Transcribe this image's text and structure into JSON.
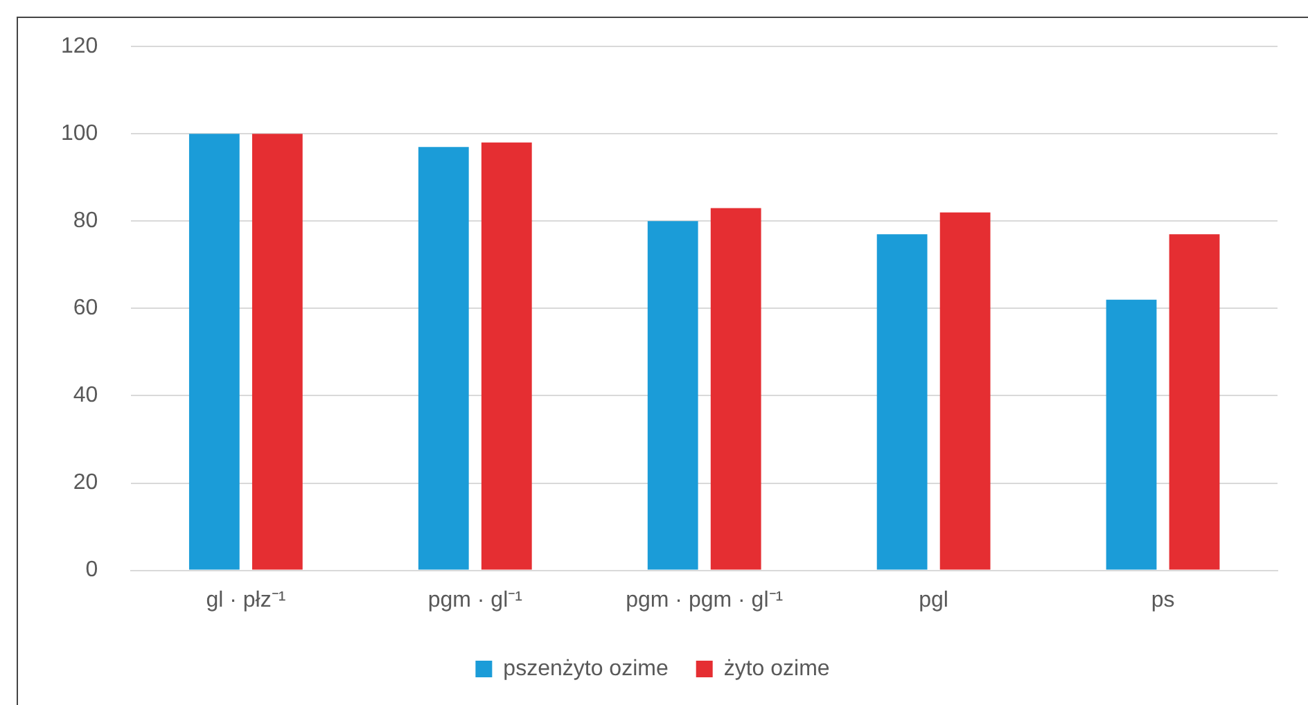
{
  "chart_data": {
    "type": "bar",
    "categories": [
      "gl · płz⁻¹",
      "pgm · gl⁻¹",
      "pgm · pgm · gl⁻¹",
      "pgl",
      "ps"
    ],
    "series": [
      {
        "name": "pszenżyto ozime",
        "color": "#1b9cd8",
        "values": [
          100,
          97,
          80,
          77,
          62
        ]
      },
      {
        "name": "żyto ozime",
        "color": "#e52e32",
        "values": [
          100,
          98,
          83,
          82,
          77
        ]
      }
    ],
    "ylim": [
      0,
      120
    ],
    "yticks": [
      0,
      20,
      40,
      60,
      80,
      100,
      120
    ],
    "grid": "y",
    "legend": "bottom"
  }
}
